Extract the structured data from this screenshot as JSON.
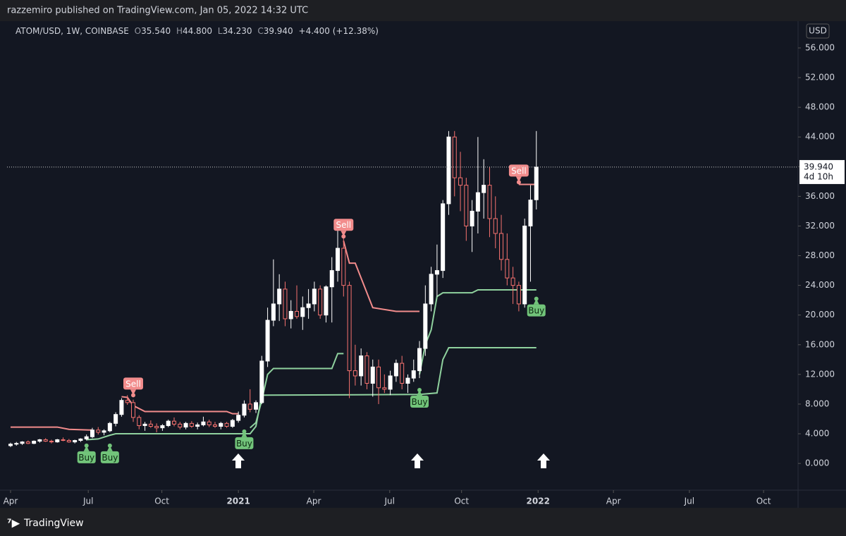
{
  "header": {
    "publisher": "razzemiro published on TradingView.com, Jan 05, 2022 14:32 UTC"
  },
  "footer": {
    "brand": "TradingView"
  },
  "chart_data": {
    "type": "candlestick",
    "legend": {
      "symbol": "ATOM/USD, 1W, COINBASE",
      "open_label": "O",
      "open": "35.540",
      "high_label": "H",
      "high": "44.800",
      "low_label": "L",
      "low": "34.230",
      "close_label": "C",
      "close": "39.940",
      "change": "+4.400 (+12.38%)"
    },
    "currency": "USD",
    "last_price": {
      "value": 39.94,
      "label": "39.940"
    },
    "countdown": "4d 10h",
    "up_color": "#ffffff",
    "down_color": "#f7726f",
    "open": [
      2.4,
      2.6,
      2.7,
      2.9,
      2.7,
      3.0,
      3.2,
      3.0,
      2.9,
      3.2,
      3.1,
      2.9,
      3.1,
      3.3,
      3.6,
      4.5,
      4.2,
      4.4,
      5.4,
      6.6,
      8.5,
      8.2,
      6.2,
      5.1,
      5.3,
      5.0,
      4.8,
      5.1,
      5.7,
      5.3,
      4.9,
      5.4,
      5.0,
      5.2,
      5.6,
      5.2,
      5.0,
      5.4,
      5.0,
      5.8,
      6.5,
      8.0,
      7.3,
      8.2,
      13.8,
      19.3,
      21.5,
      23.5,
      19.5,
      20.5,
      19.8,
      21.0,
      21.5,
      23.5,
      20.0,
      23.8,
      26.0,
      29.0,
      24.0,
      12.5,
      11.8,
      14.5,
      10.8,
      13.0,
      10.2,
      10.0,
      11.8,
      13.5,
      10.8,
      11.5,
      12.5,
      15.5,
      21.5,
      25.5,
      26.0,
      35.0,
      44.0,
      38.5,
      37.5,
      32.0,
      34.0,
      36.5,
      37.5,
      33.0,
      31.0,
      27.5,
      25.0,
      24.0,
      21.5,
      32.0,
      35.54
    ],
    "high": [
      2.8,
      2.9,
      3.0,
      3.1,
      3.1,
      3.3,
      3.4,
      3.2,
      3.3,
      3.5,
      3.3,
      3.2,
      3.4,
      3.9,
      4.8,
      4.9,
      4.6,
      5.6,
      6.9,
      8.8,
      9.2,
      8.6,
      6.5,
      5.6,
      5.8,
      5.4,
      5.3,
      5.9,
      6.2,
      5.6,
      5.6,
      5.7,
      5.5,
      6.3,
      5.9,
      5.6,
      5.6,
      5.6,
      6.0,
      7.0,
      8.5,
      10.0,
      8.5,
      14.5,
      21.0,
      27.5,
      25.5,
      24.5,
      22.0,
      24.0,
      22.5,
      23.5,
      24.5,
      24.0,
      24.0,
      27.8,
      31.5,
      31.0,
      24.5,
      16.0,
      15.5,
      15.0,
      14.0,
      14.0,
      12.0,
      12.5,
      14.0,
      14.5,
      12.0,
      14.0,
      16.5,
      24.0,
      26.5,
      29.5,
      35.5,
      44.8,
      44.8,
      42.0,
      38.5,
      35.5,
      44.0,
      41.0,
      40.0,
      36.0,
      33.5,
      31.0,
      26.5,
      24.5,
      33.0,
      37.5,
      44.8
    ],
    "low": [
      2.2,
      2.4,
      2.5,
      2.6,
      2.6,
      2.8,
      2.9,
      2.7,
      2.8,
      3.0,
      2.8,
      2.7,
      2.9,
      3.1,
      3.4,
      3.9,
      3.8,
      4.2,
      5.0,
      6.3,
      7.9,
      5.6,
      4.6,
      4.4,
      4.8,
      4.2,
      4.4,
      4.9,
      5.0,
      4.6,
      4.6,
      4.8,
      4.6,
      5.0,
      4.9,
      4.8,
      4.6,
      4.8,
      4.8,
      5.5,
      6.2,
      6.9,
      6.8,
      8.0,
      13.0,
      18.5,
      19.2,
      18.5,
      18.2,
      19.5,
      18.0,
      19.5,
      20.5,
      19.5,
      19.0,
      19.0,
      24.5,
      22.5,
      8.8,
      10.5,
      10.5,
      10.0,
      9.0,
      8.0,
      9.5,
      9.2,
      11.0,
      10.0,
      9.5,
      11.0,
      11.5,
      14.5,
      20.5,
      22.5,
      25.0,
      33.5,
      36.0,
      34.0,
      30.0,
      28.5,
      31.0,
      33.0,
      30.5,
      29.0,
      26.0,
      24.0,
      21.5,
      20.5,
      21.0,
      24.5,
      34.23
    ],
    "close": [
      2.6,
      2.7,
      2.9,
      2.7,
      3.0,
      3.2,
      3.0,
      2.9,
      3.2,
      3.1,
      2.9,
      3.1,
      3.3,
      3.6,
      4.5,
      4.2,
      4.4,
      5.4,
      6.6,
      8.5,
      8.2,
      6.2,
      5.1,
      5.3,
      5.0,
      4.8,
      5.1,
      5.7,
      5.3,
      4.9,
      5.4,
      5.0,
      5.2,
      5.6,
      5.2,
      5.0,
      5.4,
      5.0,
      5.8,
      6.5,
      8.0,
      7.3,
      8.2,
      13.8,
      19.3,
      21.5,
      23.5,
      19.5,
      20.5,
      19.8,
      21.0,
      21.5,
      23.5,
      20.0,
      23.8,
      26.0,
      29.0,
      24.0,
      12.5,
      11.8,
      14.5,
      10.8,
      13.0,
      10.2,
      10.0,
      11.8,
      13.5,
      10.8,
      11.5,
      12.5,
      15.5,
      21.5,
      25.5,
      26.0,
      35.0,
      44.0,
      38.5,
      37.5,
      32.0,
      34.0,
      36.5,
      37.5,
      33.0,
      31.0,
      27.5,
      25.0,
      24.0,
      21.5,
      32.0,
      35.5,
      39.94
    ],
    "xlim": [
      -0.6,
      134.8
    ],
    "xticks": [
      {
        "value": 0,
        "label": "Apr"
      },
      {
        "value": 13.3,
        "label": "Jul"
      },
      {
        "value": 25.9,
        "label": "Oct"
      },
      {
        "value": 39,
        "label": "2021"
      },
      {
        "value": 51.9,
        "label": "Apr"
      },
      {
        "value": 64.9,
        "label": "Jul"
      },
      {
        "value": 77.2,
        "label": "Oct"
      },
      {
        "value": 90.3,
        "label": "2022"
      },
      {
        "value": 103.2,
        "label": "Apr"
      },
      {
        "value": 116.2,
        "label": "Jul"
      },
      {
        "value": 128.9,
        "label": "Oct"
      }
    ],
    "ylim": [
      -3.6,
      59.8
    ],
    "yticks": [
      {
        "value": 0,
        "label": "0.000"
      },
      {
        "value": 4,
        "label": "4.000"
      },
      {
        "value": 8,
        "label": "8.000"
      },
      {
        "value": 12,
        "label": "12.000"
      },
      {
        "value": 16,
        "label": "16.000"
      },
      {
        "value": 20,
        "label": "20.000"
      },
      {
        "value": 24,
        "label": "24.000"
      },
      {
        "value": 28,
        "label": "28.000"
      },
      {
        "value": 32,
        "label": "32.000"
      },
      {
        "value": 36,
        "label": "36.000"
      },
      {
        "value": 40,
        "label": "40.000"
      },
      {
        "value": 44,
        "label": "44.000"
      },
      {
        "value": 48,
        "label": "48.000"
      },
      {
        "value": 52,
        "label": "52.000"
      },
      {
        "value": 56,
        "label": "56.000"
      }
    ],
    "lines": [
      {
        "color": "#f28c8c",
        "x": [
          0,
          8,
          10,
          14
        ],
        "values": [
          4.9,
          4.9,
          4.6,
          4.5
        ]
      },
      {
        "color": "#f28c8c",
        "x": [
          19,
          20,
          21,
          23,
          37,
          38,
          39
        ],
        "values": [
          9.0,
          8.9,
          7.8,
          7.0,
          7.0,
          6.7,
          6.7
        ]
      },
      {
        "color": "#f28c8c",
        "x": [
          57,
          58,
          59,
          60,
          62,
          66,
          70
        ],
        "values": [
          30,
          27,
          27,
          25,
          21,
          20.5,
          20.5
        ]
      },
      {
        "color": "#f28c8c",
        "x": [
          87,
          90
        ],
        "values": [
          37.6,
          37.6
        ]
      },
      {
        "color": "#8fd19e",
        "x": [
          13,
          15,
          17,
          18,
          38,
          41,
          42,
          43,
          70,
          73,
          74,
          75,
          90
        ],
        "values": [
          3.2,
          3.3,
          3.8,
          4,
          4,
          4,
          5,
          9.2,
          9.3,
          9.5,
          14,
          15.6,
          15.6
        ]
      },
      {
        "color": "#8fd19e",
        "x": [
          41,
          42,
          43,
          44,
          45,
          55,
          56,
          57
        ],
        "values": [
          4.8,
          5.5,
          8.5,
          12,
          12.8,
          12.8,
          14.8,
          14.8
        ]
      },
      {
        "color": "#8fd19e",
        "x": [
          70,
          71,
          72,
          73,
          74,
          79,
          80,
          90
        ],
        "values": [
          12,
          16,
          18,
          22.5,
          23,
          23,
          23.4,
          23.4
        ]
      }
    ],
    "signals": [
      {
        "label": "Buy",
        "x": 13,
        "value": 2.4,
        "color": "#72c47a"
      },
      {
        "label": "Buy",
        "x": 17,
        "value": 2.4,
        "color": "#72c47a"
      },
      {
        "label": "Sell",
        "x": 21,
        "value": 9.2,
        "color": "#f28c8c"
      },
      {
        "label": "Buy",
        "x": 40,
        "value": 4.3,
        "color": "#72c47a"
      },
      {
        "label": "Sell",
        "x": 57,
        "value": 30.6,
        "color": "#f28c8c"
      },
      {
        "label": "Buy",
        "x": 70,
        "value": 9.9,
        "color": "#72c47a"
      },
      {
        "label": "Sell",
        "x": 87,
        "value": 37.9,
        "color": "#f28c8c"
      },
      {
        "label": "Buy",
        "x": 90,
        "value": 22.2,
        "color": "#72c47a"
      }
    ]
  }
}
